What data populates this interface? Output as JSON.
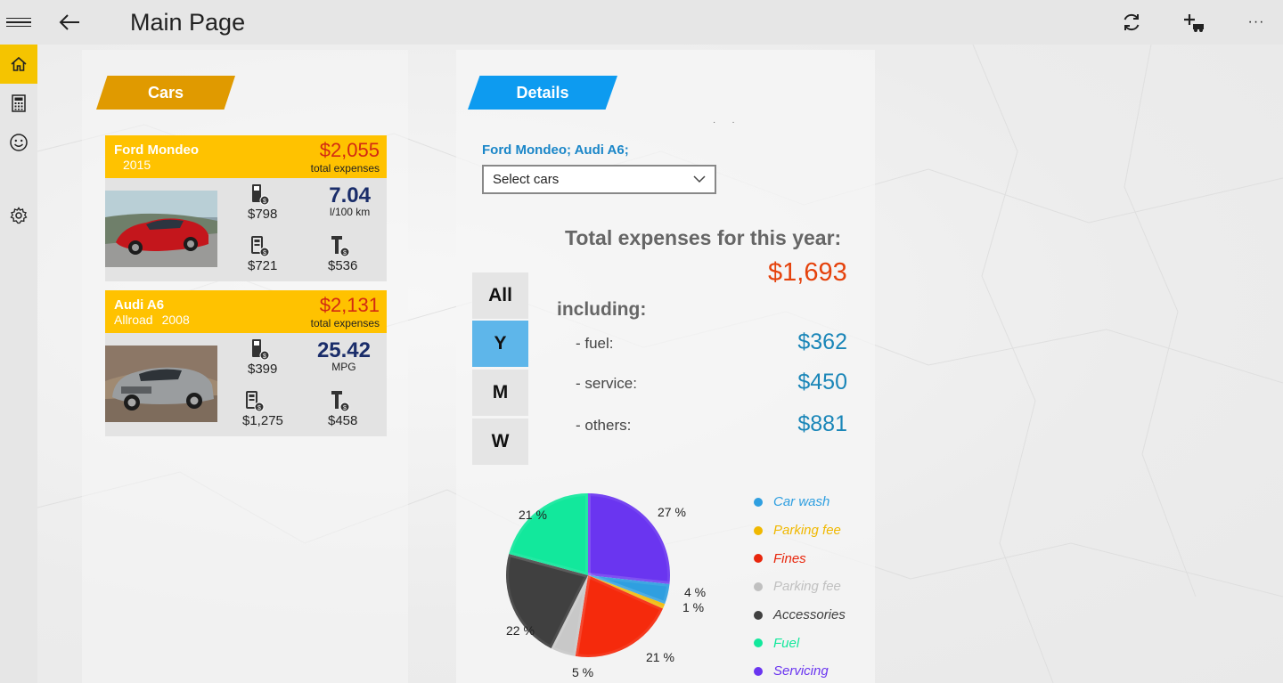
{
  "header": {
    "title": "Main Page",
    "back_label": "←",
    "actions": [
      "refresh-icon",
      "add-car-icon",
      "more-icon"
    ],
    "more_label": "···"
  },
  "nav": {
    "items": [
      {
        "icon": "home-icon",
        "active": true
      },
      {
        "icon": "calculator-icon",
        "active": false
      },
      {
        "icon": "smiley-icon",
        "active": false
      },
      {
        "icon": "gear-icon",
        "active": false
      }
    ]
  },
  "cars_section": {
    "tab_label": "Cars",
    "cars": [
      {
        "name": "Ford Mondeo",
        "variant": "",
        "year": "2015",
        "total": "$2,055",
        "total_label": "total expenses",
        "fuel": "$798",
        "consumption": "7.04",
        "consumption_unit": "l/100 km",
        "service": "$721",
        "others": "$536",
        "color": "#c4161c"
      },
      {
        "name": "Audi A6",
        "variant": "Allroad",
        "year": "2008",
        "total": "$2,131",
        "total_label": "total expenses",
        "fuel": "$399",
        "consumption": "25.42",
        "consumption_unit": "MPG",
        "service": "$1,275",
        "others": "$458",
        "color": "#8a8d8f"
      }
    ]
  },
  "details": {
    "tab_label": "Details",
    "selected_cars": "Ford Mondeo; Audi A6;",
    "dropdown_value": "Select cars",
    "total_title": "Total expenses for this year:",
    "total_value": "$1,693",
    "including_label": "including:",
    "breakdown": [
      {
        "label": "- fuel:",
        "value": "$362"
      },
      {
        "label": "- service:",
        "value": "$450"
      },
      {
        "label": "- others:",
        "value": "$881"
      }
    ],
    "periods": [
      {
        "label": "All",
        "active": false
      },
      {
        "label": "Y",
        "active": true
      },
      {
        "label": "M",
        "active": false
      },
      {
        "label": "W",
        "active": false
      }
    ]
  },
  "chart_data": {
    "type": "pie",
    "slices": [
      {
        "label": "27 %",
        "value": 27,
        "color": "#6a35f0"
      },
      {
        "label": "4 %",
        "value": 4,
        "color": "#2f9fe0"
      },
      {
        "label": "1 %",
        "value": 1,
        "color": "#f0b800"
      },
      {
        "label": "21 %",
        "value": 21,
        "color": "#f52a0c"
      },
      {
        "label": "5 %",
        "value": 5,
        "color": "#c8c8c8"
      },
      {
        "label": "22 %",
        "value": 22,
        "color": "#404040"
      },
      {
        "label": "21 %",
        "value": 21,
        "color": "#12e89c"
      }
    ],
    "legend": [
      {
        "label": "Car wash",
        "color": "#2f9fe0"
      },
      {
        "label": "Parking fee",
        "color": "#f0b800"
      },
      {
        "label": "Fines",
        "color": "#e8260c"
      },
      {
        "label": "Parking fee",
        "color": "#c0c0c0"
      },
      {
        "label": "Accessories",
        "color": "#404040"
      },
      {
        "label": "Fuel",
        "color": "#12e89c"
      },
      {
        "label": "Servicing",
        "color": "#6a35f0"
      }
    ]
  }
}
